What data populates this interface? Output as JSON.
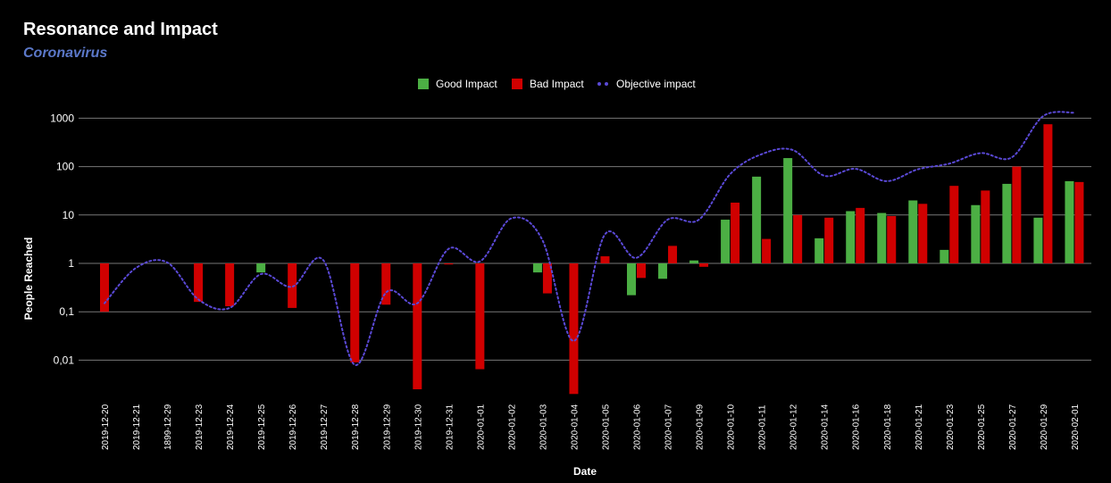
{
  "chart_data": {
    "type": "bar",
    "title": "Resonance and Impact",
    "subtitle": "Coronavirus",
    "xlabel": "Date",
    "ylabel": "People Reached",
    "yscale": "log",
    "ylim": [
      0.002,
      1000
    ],
    "y_ticks": [
      0.01,
      0.1,
      1,
      10,
      100,
      1000
    ],
    "y_tick_labels": [
      "0,01",
      "0,1",
      "1",
      "10",
      "100",
      "1000"
    ],
    "grid": true,
    "legend_position": "top-center",
    "categories": [
      "2019-12-20",
      "2019-12-21",
      "1899-12-29",
      "2019-12-23",
      "2019-12-24",
      "2019-12-25",
      "2019-12-26",
      "2019-12-27",
      "2019-12-28",
      "2019-12-29",
      "2019-12-30",
      "2019-12-31",
      "2020-01-01",
      "2020-01-02",
      "2020-01-03",
      "2020-01-04",
      "2020-01-05",
      "2020-01-06",
      "2020-01-07",
      "2020-01-09",
      "2020-01-10",
      "2020-01-11",
      "2020-01-12",
      "2020-01-14",
      "2020-01-16",
      "2020-01-18",
      "2020-01-21",
      "2020-01-23",
      "2020-01-25",
      "2020-01-27",
      "2020-01-29",
      "2020-02-01"
    ],
    "series": [
      {
        "name": "Good Impact",
        "type": "bar",
        "color": "#4caf44",
        "values": [
          null,
          null,
          null,
          null,
          null,
          0.65,
          null,
          null,
          null,
          null,
          null,
          null,
          null,
          null,
          0.65,
          null,
          null,
          0.22,
          0.48,
          1.15,
          8,
          62,
          150,
          3.3,
          12,
          11,
          20,
          1.9,
          16,
          44,
          8.8,
          50
        ]
      },
      {
        "name": "Bad Impact",
        "type": "bar",
        "color": "#d00000",
        "values": [
          0.1,
          null,
          null,
          0.16,
          0.13,
          null,
          0.12,
          null,
          0.009,
          0.14,
          0.0025,
          0.95,
          0.0065,
          null,
          0.24,
          0.002,
          1.4,
          0.5,
          2.3,
          0.85,
          18,
          3.2,
          10,
          8.8,
          14,
          9.5,
          17,
          40,
          32,
          100,
          750,
          48
        ]
      },
      {
        "name": "Objective impact",
        "type": "line",
        "style": "dotted",
        "color": "#5a49d6",
        "values": [
          0.15,
          0.8,
          1.05,
          0.18,
          0.12,
          0.6,
          0.33,
          1.15,
          0.008,
          0.25,
          0.15,
          2,
          1.1,
          8.5,
          3,
          0.025,
          4,
          1.3,
          8,
          8,
          70,
          180,
          220,
          65,
          90,
          50,
          88,
          115,
          190,
          155,
          1100,
          1300
        ]
      }
    ]
  }
}
